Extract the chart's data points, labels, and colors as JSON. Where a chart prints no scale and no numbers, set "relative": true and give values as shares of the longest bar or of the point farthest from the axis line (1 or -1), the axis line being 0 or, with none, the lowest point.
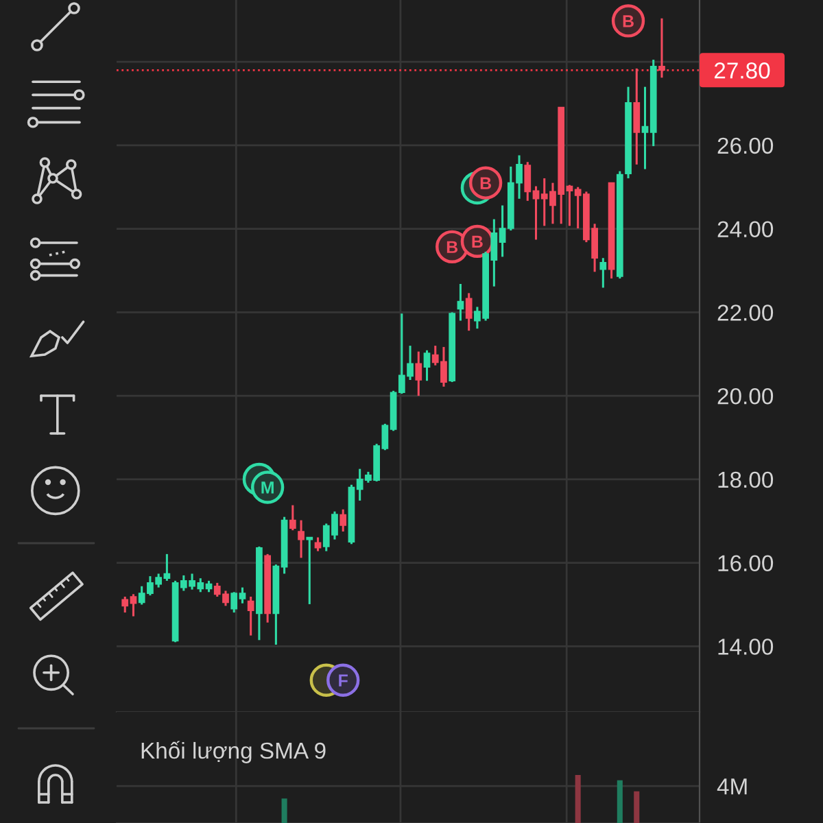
{
  "chart_data": [
    {
      "type": "candlestick",
      "categories": [
        null,
        null,
        null,
        null,
        null,
        null,
        null,
        null,
        null,
        null,
        null,
        null,
        null,
        null,
        null,
        null,
        null,
        null,
        null,
        null,
        null,
        null,
        null,
        null,
        null,
        null,
        null,
        null,
        null,
        null,
        null,
        null,
        null,
        null,
        null,
        null,
        null,
        null,
        null,
        null,
        null,
        null,
        null,
        null,
        null,
        null,
        null,
        null,
        null,
        null,
        null,
        null,
        null,
        null,
        null,
        null,
        null,
        null,
        null,
        null,
        null,
        null,
        null,
        null,
        null
      ],
      "ohlc": [
        [
          15.12,
          15.19,
          14.81,
          14.97
        ],
        [
          15.19,
          15.25,
          14.72,
          15.03
        ],
        [
          15.05,
          15.44,
          15.0,
          15.27
        ],
        [
          15.27,
          15.68,
          15.22,
          15.52
        ],
        [
          15.49,
          15.74,
          15.41,
          15.65
        ],
        [
          15.63,
          16.21,
          15.57,
          15.74
        ],
        [
          14.13,
          15.57,
          14.1,
          15.52
        ],
        [
          15.41,
          15.7,
          15.33,
          15.57
        ],
        [
          15.44,
          15.74,
          15.36,
          15.57
        ],
        [
          15.38,
          15.63,
          15.3,
          15.52
        ],
        [
          15.38,
          15.57,
          15.3,
          15.49
        ],
        [
          15.44,
          15.52,
          15.19,
          15.25
        ],
        [
          15.25,
          15.33,
          14.97,
          15.05
        ],
        [
          14.9,
          15.3,
          14.81,
          15.27
        ],
        [
          15.14,
          15.41,
          15.03,
          15.27
        ],
        [
          15.08,
          15.19,
          14.26,
          14.86
        ],
        [
          14.79,
          16.39,
          14.15,
          16.36
        ],
        [
          16.17,
          16.21,
          14.57,
          14.79
        ],
        [
          14.79,
          15.96,
          14.04,
          15.92
        ],
        [
          15.9,
          17.1,
          15.74,
          17.02
        ],
        [
          17.02,
          17.38,
          16.78,
          16.83
        ],
        [
          16.75,
          17.02,
          16.12,
          16.56
        ],
        [
          16.56,
          16.61,
          15.01,
          16.61
        ],
        [
          16.48,
          16.61,
          16.28,
          16.36
        ],
        [
          16.39,
          16.94,
          16.28,
          16.89
        ],
        [
          16.67,
          17.23,
          16.56,
          17.16
        ],
        [
          17.15,
          17.28,
          16.75,
          16.9
        ],
        [
          16.5,
          17.87,
          16.45,
          17.81
        ],
        [
          17.76,
          18.25,
          17.49,
          18.0
        ],
        [
          17.98,
          18.18,
          17.92,
          18.1
        ],
        [
          17.98,
          18.85,
          17.95,
          18.8
        ],
        [
          18.74,
          19.33,
          18.7,
          19.29
        ],
        [
          19.2,
          20.12,
          19.16,
          20.08
        ],
        [
          20.08,
          21.97,
          20.05,
          20.49
        ],
        [
          20.47,
          21.2,
          20.38,
          20.77
        ],
        [
          20.77,
          21.06,
          20.0,
          20.38
        ],
        [
          20.69,
          21.09,
          20.36,
          21.02
        ],
        [
          20.98,
          21.2,
          20.73,
          20.8
        ],
        [
          20.82,
          21.17,
          20.22,
          20.33
        ],
        [
          20.36,
          22.0,
          20.33,
          21.97
        ],
        [
          22.08,
          22.68,
          21.8,
          22.26
        ],
        [
          22.33,
          22.46,
          21.56,
          21.86
        ],
        [
          21.8,
          22.13,
          21.61,
          22.02
        ],
        [
          21.86,
          23.45,
          21.8,
          23.4
        ],
        [
          23.25,
          24.23,
          22.62,
          23.9
        ],
        [
          23.68,
          24.56,
          23.33,
          24.01
        ],
        [
          24.01,
          25.49,
          23.96,
          25.1
        ],
        [
          25.1,
          25.76,
          24.72,
          25.54
        ],
        [
          25.52,
          25.6,
          24.67,
          24.89
        ],
        [
          24.91,
          25.02,
          23.74,
          24.72
        ],
        [
          24.83,
          25.21,
          24.07,
          24.72
        ],
        [
          24.89,
          25.1,
          24.12,
          24.56
        ],
        [
          26.91,
          26.91,
          24.12,
          24.83
        ],
        [
          25.02,
          25.05,
          24.07,
          24.91
        ],
        [
          24.94,
          25.0,
          24.01,
          24.8
        ],
        [
          24.83,
          24.89,
          23.68,
          23.74
        ],
        [
          24.01,
          24.12,
          22.97,
          23.3
        ],
        [
          23.03,
          23.3,
          22.59,
          23.19
        ],
        [
          25.1,
          25.1,
          22.81,
          23.03
        ],
        [
          22.86,
          25.38,
          22.81,
          25.3
        ],
        [
          25.32,
          27.4,
          25.21,
          27.02
        ],
        [
          27.02,
          27.84,
          25.54,
          26.31
        ],
        [
          26.31,
          27.4,
          25.43,
          26.45
        ],
        [
          26.31,
          28.05,
          25.98,
          27.89
        ],
        [
          27.89,
          29.04,
          27.62,
          27.8
        ]
      ],
      "colors": [
        "#f24a5e",
        "#f24a5e",
        "#2fdca6",
        "#2fdca6",
        "#2fdca6",
        "#2fdca6",
        "#2fdca6",
        "#2fdca6",
        "#2fdca6",
        "#2fdca6",
        "#2fdca6",
        "#f24a5e",
        "#f24a5e",
        "#2fdca6",
        "#2fdca6",
        "#f24a5e",
        "#2fdca6",
        "#f24a5e",
        "#2fdca6",
        "#2fdca6",
        "#f24a5e",
        "#f24a5e",
        "#2fdca6",
        "#f24a5e",
        "#2fdca6",
        "#2fdca6",
        "#f24a5e",
        "#2fdca6",
        "#2fdca6",
        "#2fdca6",
        "#2fdca6",
        "#2fdca6",
        "#2fdca6",
        "#2fdca6",
        "#2fdca6",
        "#f24a5e",
        "#2fdca6",
        "#f24a5e",
        "#f24a5e",
        "#2fdca6",
        "#2fdca6",
        "#f24a5e",
        "#2fdca6",
        "#2fdca6",
        "#2fdca6",
        "#2fdca6",
        "#2fdca6",
        "#2fdca6",
        "#f24a5e",
        "#f24a5e",
        "#f24a5e",
        "#f24a5e",
        "#f24a5e",
        "#f24a5e",
        "#f24a5e",
        "#f24a5e",
        "#f24a5e",
        "#2fdca6",
        "#f24a5e",
        "#2fdca6",
        "#2fdca6",
        "#f24a5e",
        "#2fdca6",
        "#2fdca6",
        "#f24a5e"
      ],
      "ylim": [
        12.43,
        29.48
      ],
      "yticks": [
        {
          "value": 14,
          "label": "14.00"
        },
        {
          "value": 16,
          "label": "16.00"
        },
        {
          "value": 18,
          "label": "18.00"
        },
        {
          "value": 20,
          "label": "20.00"
        },
        {
          "value": 22,
          "label": "22.00"
        },
        {
          "value": 24,
          "label": "24.00"
        },
        {
          "value": 26,
          "label": "26.00"
        },
        {
          "value": 28,
          "label": null
        }
      ],
      "tick_labels": "y",
      "grid": "y",
      "marker": "circle",
      "ref_lines": [
        {
          "axis": "y",
          "value": 27.8,
          "label": "27.80",
          "color": "#f23645",
          "line_style": "dotted"
        }
      ],
      "series": [
        {
          "type": "scatter",
          "color": "#2fdca6",
          "values": [
            null,
            null,
            null,
            null,
            null,
            null,
            null,
            null,
            null,
            null,
            null,
            null,
            null,
            null,
            null,
            null,
            18.0,
            null,
            null,
            null,
            null,
            null,
            null,
            null,
            null,
            null,
            null,
            null,
            null,
            null,
            null,
            null,
            null,
            null,
            null,
            null,
            null,
            null,
            null,
            null,
            null,
            null,
            24.98,
            null,
            null,
            null,
            null,
            null,
            null,
            null,
            null,
            null,
            null,
            null,
            null,
            null,
            null,
            null,
            null,
            null,
            null,
            null,
            null,
            null,
            null
          ]
        },
        {
          "type": "scatter",
          "color": "#c9c14a",
          "values": [
            null,
            null,
            null,
            null,
            null,
            null,
            null,
            null,
            null,
            null,
            null,
            null,
            null,
            null,
            null,
            null,
            null,
            null,
            null,
            null,
            null,
            null,
            null,
            null,
            13.19,
            null,
            null,
            null,
            null,
            null,
            null,
            null,
            null,
            null,
            null,
            null,
            null,
            null,
            null,
            null,
            null,
            null,
            null,
            null,
            null,
            null,
            null,
            null,
            null,
            null,
            null,
            null,
            null,
            null,
            null,
            null,
            null,
            null,
            null,
            null,
            null,
            null,
            null,
            null,
            null
          ]
        },
        {
          "type": "scatter",
          "color": "#f24a5e",
          "values": [
            null,
            null,
            null,
            null,
            null,
            null,
            null,
            null,
            null,
            null,
            null,
            null,
            null,
            null,
            null,
            null,
            null,
            null,
            null,
            null,
            null,
            null,
            null,
            null,
            null,
            null,
            null,
            null,
            null,
            null,
            null,
            null,
            null,
            null,
            null,
            null,
            null,
            null,
            null,
            23.57,
            null,
            null,
            23.7,
            25.1,
            null,
            null,
            null,
            null,
            null,
            null,
            null,
            null,
            null,
            null,
            null,
            null,
            null,
            null,
            null,
            null,
            28.98,
            null,
            null,
            null,
            null
          ],
          "value_labels": [
            null,
            null,
            null,
            null,
            null,
            null,
            null,
            null,
            null,
            null,
            null,
            null,
            null,
            null,
            null,
            null,
            null,
            null,
            null,
            null,
            null,
            null,
            null,
            null,
            null,
            null,
            null,
            null,
            null,
            null,
            null,
            null,
            null,
            null,
            null,
            null,
            null,
            null,
            null,
            "B",
            null,
            null,
            "B",
            "B",
            null,
            null,
            null,
            null,
            null,
            null,
            null,
            null,
            null,
            null,
            null,
            null,
            null,
            null,
            null,
            null,
            "B",
            null,
            null,
            null,
            null
          ]
        },
        {
          "type": "scatter",
          "color": "#2fdca6",
          "values": [
            null,
            null,
            null,
            null,
            null,
            null,
            null,
            null,
            null,
            null,
            null,
            null,
            null,
            null,
            null,
            null,
            null,
            17.81,
            null,
            null,
            null,
            null,
            null,
            null,
            null,
            null,
            null,
            null,
            null,
            null,
            null,
            null,
            null,
            null,
            null,
            null,
            null,
            null,
            null,
            null,
            null,
            null,
            null,
            null,
            null,
            null,
            null,
            null,
            null,
            null,
            null,
            null,
            null,
            null,
            null,
            null,
            null,
            null,
            null,
            null,
            null,
            null,
            null,
            null,
            null
          ],
          "value_labels": [
            null,
            null,
            null,
            null,
            null,
            null,
            null,
            null,
            null,
            null,
            null,
            null,
            null,
            null,
            null,
            null,
            null,
            "M",
            null,
            null,
            null,
            null,
            null,
            null,
            null,
            null,
            null,
            null,
            null,
            null,
            null,
            null,
            null,
            null,
            null,
            null,
            null,
            null,
            null,
            null,
            null,
            null,
            null,
            null,
            null,
            null,
            null,
            null,
            null,
            null,
            null,
            null,
            null,
            null,
            null,
            null,
            null,
            null,
            null,
            null,
            null,
            null,
            null,
            null,
            null
          ]
        },
        {
          "type": "scatter",
          "color": "#8c70e6",
          "values": [
            null,
            null,
            null,
            null,
            null,
            null,
            null,
            null,
            null,
            null,
            null,
            null,
            null,
            null,
            null,
            null,
            null,
            null,
            null,
            null,
            null,
            null,
            null,
            null,
            null,
            null,
            13.19,
            null,
            null,
            null,
            null,
            null,
            null,
            null,
            null,
            null,
            null,
            null,
            null,
            null,
            null,
            null,
            null,
            null,
            null,
            null,
            null,
            null,
            null,
            null,
            null,
            null,
            null,
            null,
            null,
            null,
            null,
            null,
            null,
            null,
            null,
            null,
            null,
            null,
            null
          ],
          "value_labels": [
            null,
            null,
            null,
            null,
            null,
            null,
            null,
            null,
            null,
            null,
            null,
            null,
            null,
            null,
            null,
            null,
            null,
            null,
            null,
            null,
            null,
            null,
            null,
            null,
            null,
            null,
            "F",
            null,
            null,
            null,
            null,
            null,
            null,
            null,
            null,
            null,
            null,
            null,
            null,
            null,
            null,
            null,
            null,
            null,
            null,
            null,
            null,
            null,
            null,
            null,
            null,
            null,
            null,
            null,
            null,
            null,
            null,
            null,
            null,
            null,
            null,
            null,
            null,
            null,
            null
          ]
        }
      ]
    },
    {
      "type": "bar",
      "relative": true,
      "title": "Khối lượng SMA 9",
      "categories": [
        null,
        null,
        null,
        null,
        null,
        null,
        null,
        null,
        null,
        null,
        null,
        null,
        null,
        null,
        null,
        null,
        null,
        null,
        null,
        null,
        null,
        null,
        null,
        null,
        null,
        null,
        null,
        null,
        null,
        null,
        null,
        null,
        null,
        null,
        null,
        null,
        null,
        null,
        null,
        null,
        null,
        null,
        null,
        null,
        null,
        null,
        null,
        null,
        null,
        null,
        null,
        null,
        null,
        null,
        null,
        null,
        null,
        null,
        null,
        null,
        null,
        null,
        null,
        null,
        null
      ],
      "values": [
        null,
        null,
        null,
        null,
        null,
        null,
        null,
        null,
        null,
        null,
        null,
        null,
        null,
        null,
        null,
        null,
        null,
        null,
        null,
        0.51,
        null,
        null,
        null,
        null,
        null,
        null,
        null,
        null,
        null,
        null,
        null,
        null,
        null,
        null,
        null,
        null,
        null,
        null,
        null,
        null,
        null,
        null,
        null,
        null,
        null,
        null,
        null,
        null,
        null,
        null,
        null,
        null,
        null,
        null,
        1,
        null,
        null,
        null,
        null,
        0.89,
        null,
        0.66,
        null,
        null,
        null
      ],
      "colors": [
        "#8e3641",
        "#8e3641",
        "#1f7d5f",
        "#1f7d5f",
        "#1f7d5f",
        "#1f7d5f",
        "#1f7d5f",
        "#1f7d5f",
        "#1f7d5f",
        "#1f7d5f",
        "#1f7d5f",
        "#8e3641",
        "#8e3641",
        "#1f7d5f",
        "#1f7d5f",
        "#8e3641",
        "#1f7d5f",
        "#8e3641",
        "#1f7d5f",
        "#1f7d5f",
        "#8e3641",
        "#8e3641",
        "#1f7d5f",
        "#8e3641",
        "#1f7d5f",
        "#1f7d5f",
        "#8e3641",
        "#1f7d5f",
        "#1f7d5f",
        "#1f7d5f",
        "#1f7d5f",
        "#1f7d5f",
        "#1f7d5f",
        "#1f7d5f",
        "#1f7d5f",
        "#8e3641",
        "#1f7d5f",
        "#8e3641",
        "#8e3641",
        "#1f7d5f",
        "#1f7d5f",
        "#8e3641",
        "#1f7d5f",
        "#1f7d5f",
        "#1f7d5f",
        "#1f7d5f",
        "#1f7d5f",
        "#1f7d5f",
        "#8e3641",
        "#8e3641",
        "#8e3641",
        "#8e3641",
        "#8e3641",
        "#8e3641",
        "#8e3641",
        "#8e3641",
        "#8e3641",
        "#1f7d5f",
        "#8e3641",
        "#1f7d5f",
        "#1f7d5f",
        "#8e3641",
        "#1f7d5f",
        "#1f7d5f",
        "#8e3641"
      ],
      "ref_lines": [
        {
          "axis": "y",
          "value": 0.77,
          "label": "4M",
          "color": "#363636"
        }
      ],
      "tick_labels": false
    }
  ]
}
